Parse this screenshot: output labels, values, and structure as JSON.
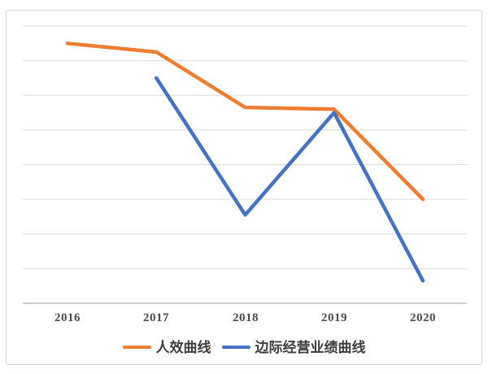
{
  "chart_data": {
    "type": "line",
    "title": "",
    "xlabel": "",
    "ylabel": "",
    "categories": [
      "2016",
      "2017",
      "2018",
      "2019",
      "2020"
    ],
    "series": [
      {
        "name": "人效曲线",
        "color": "#ED7D31",
        "values": [
          7.5,
          7.25,
          5.65,
          5.6,
          3.0
        ]
      },
      {
        "name": "边际经营业绩曲线",
        "color": "#4472C4",
        "values": [
          null,
          6.5,
          2.55,
          5.5,
          0.65
        ]
      }
    ],
    "ylim": [
      0,
      8
    ],
    "gridline_step": 1,
    "grid": true,
    "y_axis_labels_visible": false,
    "legend_position": "bottom",
    "colors": {
      "gridline": "#DBDBDB",
      "axis_line": "#BFBFBF",
      "tick_label": "#4A4A4A",
      "frame_border": "#D8D8D8",
      "background": "#FFFFFF"
    }
  }
}
